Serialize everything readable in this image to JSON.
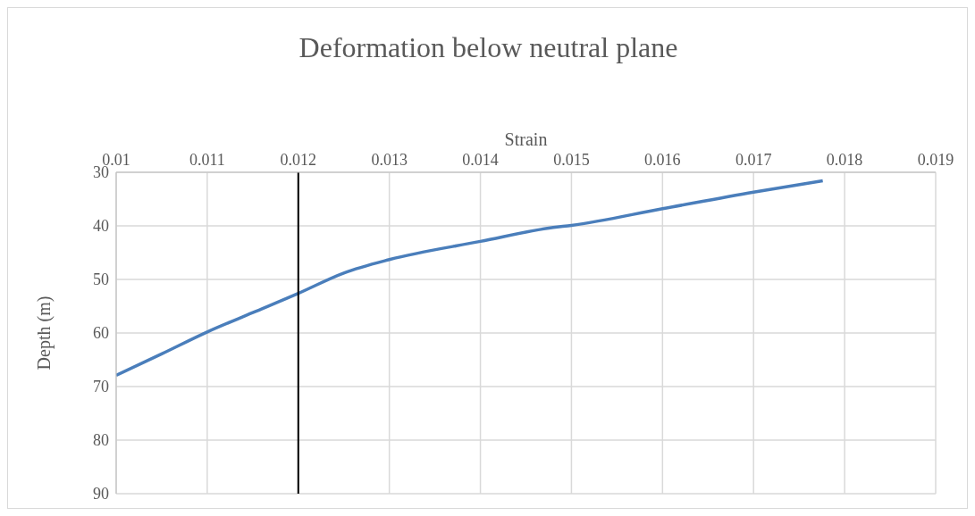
{
  "chart_data": {
    "type": "line",
    "title": "Deformation below neutral plane",
    "xlabel": "Strain",
    "ylabel": "Depth (m)",
    "x": [
      0.01,
      0.0105,
      0.011,
      0.0115,
      0.012,
      0.0125,
      0.013,
      0.014,
      0.0148,
      0.015,
      0.016,
      0.017,
      0.01776
    ],
    "series": [
      {
        "color": "#4a7ebb",
        "values": [
          67.9,
          63.9,
          59.8,
          56.2,
          52.6,
          48.8,
          46.3,
          42.9,
          40.3,
          39.9,
          36.8,
          33.7,
          31.6
        ]
      }
    ],
    "xlim": [
      0.01,
      0.019
    ],
    "xticks": [
      0.01,
      0.011,
      0.012,
      0.013,
      0.014,
      0.015,
      0.016,
      0.017,
      0.018,
      0.019
    ],
    "ylim": [
      90,
      30
    ],
    "yticks": [
      30,
      40,
      50,
      60,
      70,
      80,
      90
    ],
    "ref_lines": [
      {
        "axis": "x",
        "value": 0.012,
        "color": "#000000"
      }
    ],
    "grid": true,
    "marker": "none",
    "line_style": "solid"
  }
}
